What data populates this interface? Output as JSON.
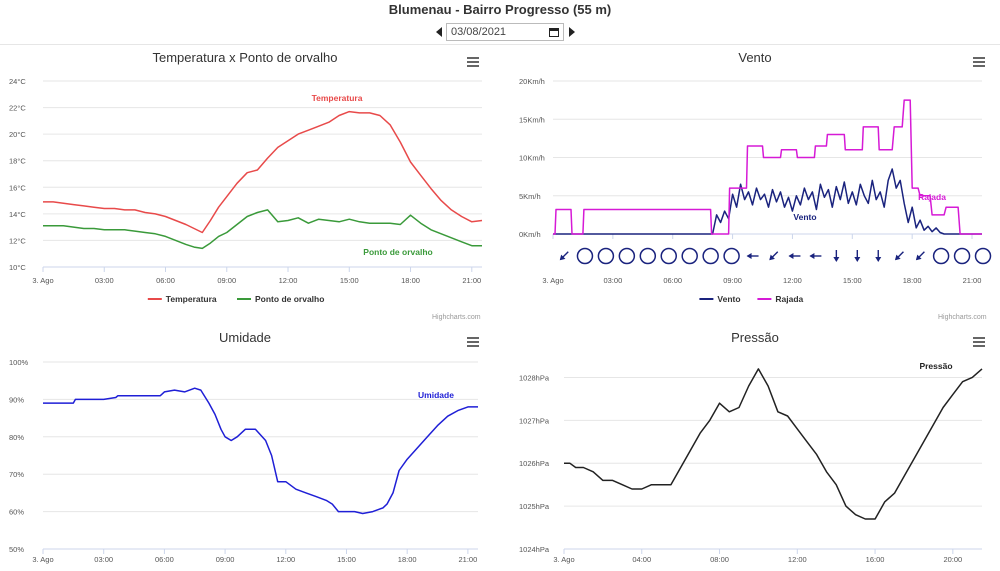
{
  "header": {
    "title": "Blumenau - Bairro Progresso (55 m)",
    "date_value": "03/08/2021"
  },
  "credits": "Highcharts.com",
  "chart_data": [
    {
      "id": "temp",
      "type": "line",
      "title": "Temperatura x Ponto de orvalho",
      "x_unit": "hours",
      "xlim": [
        0,
        21.5
      ],
      "x_ticks": [
        0,
        3,
        6,
        9,
        12,
        15,
        18,
        21
      ],
      "x_tick_labels": [
        "3. Ago",
        "03:00",
        "06:00",
        "09:00",
        "12:00",
        "15:00",
        "18:00",
        "21:00"
      ],
      "ylim": [
        10,
        24
      ],
      "y_ticks": [
        10,
        12,
        14,
        16,
        18,
        20,
        22,
        24
      ],
      "y_tick_labels": [
        "10°C",
        "12°C",
        "14°C",
        "16°C",
        "18°C",
        "20°C",
        "22°C",
        "24°C"
      ],
      "legend": [
        "Temperatura",
        "Ponto de orvalho"
      ],
      "series": [
        {
          "name": "Temperatura",
          "color": "#e84a4a",
          "label": "Temperatura",
          "x": [
            0,
            0.5,
            1,
            1.5,
            2,
            2.5,
            3,
            3.5,
            4,
            4.5,
            5,
            5.5,
            6,
            6.5,
            7,
            7.4,
            7.8,
            8.2,
            8.6,
            9,
            9.5,
            10,
            10.5,
            11,
            11.5,
            12,
            12.5,
            13,
            13.5,
            14,
            14.5,
            15,
            15.5,
            16,
            16.5,
            17,
            17.5,
            18,
            18.5,
            19,
            19.5,
            20,
            20.5,
            21,
            21.5
          ],
          "y": [
            14.9,
            14.9,
            14.8,
            14.7,
            14.6,
            14.5,
            14.4,
            14.4,
            14.3,
            14.3,
            14.1,
            14.0,
            13.8,
            13.5,
            13.2,
            12.9,
            12.6,
            13.5,
            14.5,
            15.3,
            16.3,
            17.1,
            17.3,
            18.2,
            19.0,
            19.5,
            20.0,
            20.3,
            20.6,
            20.9,
            21.4,
            21.7,
            21.6,
            21.6,
            21.4,
            20.7,
            19.4,
            17.9,
            16.9,
            15.9,
            15.0,
            14.3,
            13.8,
            13.4,
            13.5
          ]
        },
        {
          "name": "Ponto de orvalho",
          "color": "#3a9a3a",
          "label": "Ponto de orvalho",
          "x": [
            0,
            0.5,
            1,
            1.5,
            2,
            2.5,
            3,
            3.5,
            4,
            4.5,
            5,
            5.5,
            6,
            6.5,
            7,
            7.4,
            7.8,
            8.2,
            8.6,
            9,
            9.5,
            10,
            10.5,
            11,
            11.5,
            12,
            12.5,
            13,
            13.5,
            14,
            14.5,
            15,
            15.5,
            16,
            16.5,
            17,
            17.5,
            18,
            18.5,
            19,
            19.5,
            20,
            20.5,
            21,
            21.5
          ],
          "y": [
            13.1,
            13.1,
            13.1,
            13.0,
            12.9,
            12.9,
            12.8,
            12.8,
            12.8,
            12.7,
            12.6,
            12.5,
            12.3,
            12.0,
            11.7,
            11.5,
            11.4,
            11.8,
            12.3,
            12.6,
            13.2,
            13.8,
            14.1,
            14.3,
            13.4,
            13.5,
            13.7,
            13.3,
            13.6,
            13.5,
            13.4,
            13.6,
            13.4,
            13.3,
            13.3,
            13.3,
            13.2,
            13.9,
            13.3,
            12.8,
            12.5,
            12.2,
            11.9,
            11.6,
            11.6
          ]
        }
      ]
    },
    {
      "id": "wind",
      "type": "line",
      "title": "Vento",
      "x_unit": "hours",
      "xlim": [
        0,
        21.5
      ],
      "x_ticks": [
        0,
        3,
        6,
        9,
        12,
        15,
        18,
        21
      ],
      "x_tick_labels": [
        "3. Ago",
        "03:00",
        "06:00",
        "09:00",
        "12:00",
        "15:00",
        "18:00",
        "21:00"
      ],
      "ylim": [
        0,
        20
      ],
      "y_ticks": [
        0,
        5,
        10,
        15,
        20
      ],
      "y_tick_labels": [
        "0Km/h",
        "5Km/h",
        "10Km/h",
        "15Km/h",
        "20Km/h"
      ],
      "legend": [
        "Vento",
        "Rajada"
      ],
      "series": [
        {
          "name": "Vento",
          "color": "#1a237e",
          "label": "Vento",
          "x": [
            0,
            8.0,
            8.2,
            8.4,
            8.6,
            8.8,
            9.0,
            9.2,
            9.4,
            9.6,
            9.8,
            10.0,
            10.2,
            10.4,
            10.6,
            10.8,
            11.0,
            11.2,
            11.4,
            11.6,
            11.8,
            12.0,
            12.2,
            12.4,
            12.6,
            12.8,
            13.0,
            13.2,
            13.4,
            13.6,
            13.8,
            14.0,
            14.2,
            14.4,
            14.6,
            14.8,
            15.0,
            15.2,
            15.4,
            15.6,
            15.8,
            16.0,
            16.2,
            16.4,
            16.6,
            16.8,
            17.0,
            17.2,
            17.4,
            17.6,
            17.8,
            18.0,
            18.2,
            18.4,
            18.6,
            18.8,
            19.0,
            19.2,
            19.4,
            19.6,
            19.8,
            20.0,
            20.2,
            21.5
          ],
          "y": [
            0,
            0,
            2.5,
            1.5,
            3.0,
            2.0,
            5.2,
            3.5,
            6.5,
            4.5,
            5.5,
            3.8,
            6.0,
            4.5,
            5.2,
            3.5,
            5.8,
            4.2,
            5.5,
            3.5,
            4.8,
            3.0,
            5.0,
            3.8,
            6.0,
            4.5,
            5.5,
            3.2,
            6.5,
            4.8,
            5.8,
            3.5,
            6.2,
            4.5,
            6.8,
            4.0,
            5.5,
            3.8,
            6.5,
            5.0,
            4.0,
            7.0,
            4.5,
            5.5,
            3.5,
            7.0,
            8.5,
            6.0,
            7.0,
            4.0,
            1.5,
            3.5,
            0.8,
            1.8,
            0.5,
            1.0,
            0.3,
            0.8,
            0.2,
            0,
            0,
            0,
            0,
            0
          ]
        },
        {
          "name": "Rajada",
          "color": "#d61ad6",
          "label": "Rajada",
          "x": [
            0,
            0.1,
            0.15,
            0.9,
            0.95,
            1.5,
            1.55,
            7.9,
            7.95,
            8.8,
            8.85,
            9.7,
            9.75,
            10.5,
            10.55,
            11.4,
            11.45,
            12.2,
            12.25,
            13.1,
            13.15,
            13.7,
            13.75,
            14.6,
            14.65,
            15.5,
            15.55,
            16.3,
            16.35,
            17.0,
            17.1,
            17.5,
            17.6,
            17.9,
            18.0,
            18.3,
            18.4,
            18.9,
            19.0,
            19.6,
            19.7,
            20.3,
            20.4,
            21.5
          ],
          "y": [
            0,
            0,
            3.2,
            3.2,
            0,
            0,
            3.2,
            3.2,
            0,
            0,
            6.0,
            6.0,
            11.5,
            11.5,
            10.0,
            10.0,
            11.0,
            11.0,
            10.0,
            10.0,
            11.5,
            11.5,
            13.0,
            13.0,
            11.0,
            11.0,
            14.0,
            14.0,
            11.0,
            11.0,
            14.0,
            14.0,
            17.5,
            17.5,
            6.0,
            6.0,
            5.0,
            5.0,
            2.5,
            2.5,
            3.5,
            3.5,
            0,
            0
          ]
        }
      ],
      "wind_directions": [
        "sw",
        "calm",
        "calm",
        "calm",
        "calm",
        "calm",
        "calm",
        "calm",
        "calm",
        "w",
        "sw",
        "w",
        "w",
        "s",
        "s",
        "s",
        "sw",
        "sw",
        "calm",
        "calm",
        "calm"
      ]
    },
    {
      "id": "hum",
      "type": "line",
      "title": "Umidade",
      "x_unit": "hours",
      "xlim": [
        0,
        21.5
      ],
      "x_ticks": [
        0,
        3,
        6,
        9,
        12,
        15,
        18,
        21
      ],
      "x_tick_labels": [
        "3. Ago",
        "03:00",
        "06:00",
        "09:00",
        "12:00",
        "15:00",
        "18:00",
        "21:00"
      ],
      "ylim": [
        50,
        100
      ],
      "y_ticks": [
        50,
        60,
        70,
        80,
        90,
        100
      ],
      "y_tick_labels": [
        "50%",
        "60%",
        "70%",
        "80%",
        "90%",
        "100%"
      ],
      "series": [
        {
          "name": "Umidade",
          "color": "#1f1fd6",
          "label": "Umidade",
          "x": [
            0,
            1.5,
            1.6,
            3.0,
            3.6,
            3.7,
            5.8,
            6.0,
            6.5,
            7.0,
            7.5,
            7.8,
            8.2,
            8.5,
            8.8,
            9.0,
            9.3,
            9.6,
            10.0,
            10.5,
            11.0,
            11.3,
            11.6,
            12.0,
            12.5,
            13.0,
            13.5,
            14.0,
            14.3,
            14.6,
            15.0,
            15.4,
            15.8,
            16.3,
            16.8,
            17.0,
            17.3,
            17.6,
            18.0,
            18.5,
            19.0,
            19.5,
            20.0,
            20.5,
            21.0,
            21.5
          ],
          "y": [
            89,
            89,
            90,
            90,
            90.5,
            91,
            91,
            92,
            92.5,
            92,
            93,
            92.5,
            89,
            86,
            82,
            80,
            79,
            80,
            82,
            82,
            79,
            75,
            68,
            68,
            66,
            65,
            64,
            63,
            62,
            60,
            60,
            60,
            59.5,
            60,
            61,
            62,
            65,
            71,
            74,
            77,
            80,
            83,
            85.5,
            87,
            88,
            88
          ]
        }
      ]
    },
    {
      "id": "press",
      "type": "line",
      "title": "Pressão",
      "x_unit": "hours",
      "xlim": [
        0,
        21.5
      ],
      "x_ticks": [
        0,
        4,
        8,
        12,
        16,
        20
      ],
      "x_tick_labels": [
        "3. Ago",
        "04:00",
        "08:00",
        "12:00",
        "16:00",
        "20:00"
      ],
      "ylim": [
        1024,
        1028.5
      ],
      "y_ticks": [
        1024,
        1025,
        1026,
        1027,
        1028
      ],
      "y_tick_labels": [
        "1024hPa",
        "1025hPa",
        "1026hPa",
        "1027hPa",
        "1028hPa"
      ],
      "series": [
        {
          "name": "Pressão",
          "color": "#222222",
          "label": "Pressão",
          "x": [
            0,
            0.3,
            0.6,
            1.0,
            1.5,
            2.0,
            2.5,
            3.0,
            3.5,
            4.0,
            4.5,
            5.0,
            5.5,
            6.0,
            6.5,
            7.0,
            7.5,
            8.0,
            8.5,
            9.0,
            9.5,
            10.0,
            10.5,
            11.0,
            11.5,
            12.0,
            12.5,
            13.0,
            13.5,
            14.0,
            14.5,
            15.0,
            15.5,
            16.0,
            16.5,
            17.0,
            17.5,
            18.0,
            18.5,
            19.0,
            19.5,
            20.0,
            20.5,
            21.0,
            21.5
          ],
          "y": [
            1026.0,
            1026.0,
            1025.9,
            1025.9,
            1025.8,
            1025.6,
            1025.6,
            1025.5,
            1025.4,
            1025.4,
            1025.5,
            1025.5,
            1025.5,
            1025.9,
            1026.3,
            1026.7,
            1027.0,
            1027.4,
            1027.2,
            1027.3,
            1027.8,
            1028.2,
            1027.8,
            1027.2,
            1027.1,
            1026.8,
            1026.5,
            1026.2,
            1025.8,
            1025.5,
            1025.0,
            1024.8,
            1024.7,
            1024.7,
            1025.1,
            1025.3,
            1025.7,
            1026.1,
            1026.5,
            1026.9,
            1027.3,
            1027.6,
            1027.9,
            1028.0,
            1028.2
          ]
        }
      ]
    }
  ]
}
